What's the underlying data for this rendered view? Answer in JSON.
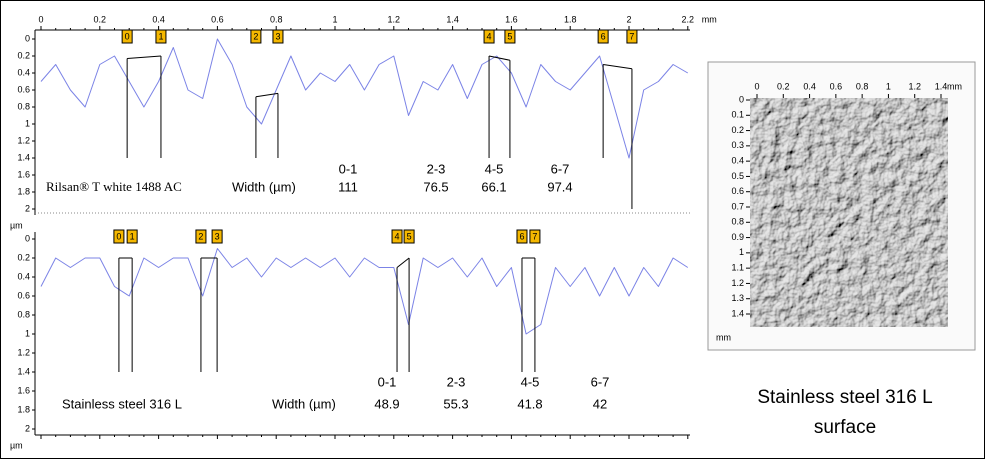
{
  "chart_data": [
    {
      "type": "line",
      "x_label": "mm",
      "y_label": "µm",
      "y_inverted": true,
      "show_x_tick_labels": true,
      "xlim": [
        0,
        2.2
      ],
      "xticks": [
        0,
        0.2,
        0.4,
        0.6,
        0.8,
        1,
        1.2,
        1.4,
        1.6,
        1.8,
        2,
        2.2
      ],
      "ylim": [
        0,
        2
      ],
      "yticks": [
        0,
        0.2,
        0.4,
        0.6,
        0.8,
        1,
        1.2,
        1.4,
        1.6,
        1.8,
        2
      ],
      "x": [
        0,
        0.05,
        0.1,
        0.15,
        0.2,
        0.25,
        0.3,
        0.35,
        0.4,
        0.45,
        0.5,
        0.55,
        0.6,
        0.65,
        0.7,
        0.75,
        0.8,
        0.85,
        0.9,
        0.95,
        1.0,
        1.05,
        1.1,
        1.15,
        1.2,
        1.25,
        1.3,
        1.35,
        1.4,
        1.45,
        1.5,
        1.55,
        1.6,
        1.65,
        1.7,
        1.75,
        1.8,
        1.85,
        1.9,
        1.95,
        2.0,
        2.05,
        2.1,
        2.15,
        2.2
      ],
      "series": [
        {
          "name": "Rilsan® T white 1488 AC",
          "color": "#7b83e6",
          "values": [
            0.5,
            0.3,
            0.6,
            0.8,
            0.3,
            0.2,
            0.5,
            0.8,
            0.5,
            0.1,
            0.6,
            0.7,
            0.0,
            0.3,
            0.8,
            1.0,
            0.6,
            0.2,
            0.6,
            0.4,
            0.5,
            0.3,
            0.6,
            0.3,
            0.2,
            0.9,
            0.5,
            0.6,
            0.3,
            0.7,
            0.3,
            0.2,
            0.4,
            0.8,
            0.3,
            0.5,
            0.6,
            0.4,
            0.2,
            0.8,
            1.4,
            0.6,
            0.5,
            0.3,
            0.4
          ]
        }
      ],
      "markers": [
        {
          "label": "0",
          "x": 0.293,
          "y": 0.23,
          "to": 1.4
        },
        {
          "label": "1",
          "x": 0.408,
          "y": 0.2,
          "to": 1.4
        },
        {
          "label": "2",
          "x": 0.731,
          "y": 0.68,
          "to": 1.4
        },
        {
          "label": "3",
          "x": 0.806,
          "y": 0.64,
          "to": 1.4
        },
        {
          "label": "4",
          "x": 1.524,
          "y": 0.2,
          "to": 1.4
        },
        {
          "label": "5",
          "x": 1.595,
          "y": 0.25,
          "to": 1.4
        },
        {
          "label": "6",
          "x": 1.912,
          "y": 0.3,
          "to": 1.4
        },
        {
          "label": "7",
          "x": 2.01,
          "y": 0.35,
          "to": 2
        }
      ],
      "width_table": {
        "label": "Width (µm)",
        "pairs": [
          "0-1",
          "2-3",
          "4-5",
          "6-7"
        ],
        "values": [
          111,
          76.5,
          66.1,
          97.4
        ]
      }
    },
    {
      "type": "line",
      "y_label": "µm",
      "y_inverted": true,
      "show_x_tick_labels": false,
      "xlim": [
        0,
        2.2
      ],
      "xticks": [
        0,
        0.2,
        0.4,
        0.6,
        0.8,
        1,
        1.2,
        1.4,
        1.6,
        1.8,
        2,
        2.2
      ],
      "ylim": [
        0,
        2
      ],
      "yticks": [
        0,
        0.2,
        0.4,
        0.6,
        0.8,
        1,
        1.2,
        1.4,
        1.6,
        1.8,
        2
      ],
      "x": [
        0,
        0.05,
        0.1,
        0.15,
        0.2,
        0.25,
        0.3,
        0.35,
        0.4,
        0.45,
        0.5,
        0.55,
        0.6,
        0.65,
        0.7,
        0.75,
        0.8,
        0.85,
        0.9,
        0.95,
        1.0,
        1.05,
        1.1,
        1.15,
        1.2,
        1.25,
        1.3,
        1.35,
        1.4,
        1.45,
        1.5,
        1.55,
        1.6,
        1.65,
        1.7,
        1.75,
        1.8,
        1.85,
        1.9,
        1.95,
        2.0,
        2.05,
        2.1,
        2.15,
        2.2
      ],
      "series": [
        {
          "name": "Stainless steel 316 L",
          "color": "#7b83e6",
          "values": [
            0.5,
            0.2,
            0.3,
            0.2,
            0.2,
            0.5,
            0.6,
            0.2,
            0.3,
            0.2,
            0.2,
            0.6,
            0.1,
            0.3,
            0.2,
            0.4,
            0.2,
            0.3,
            0.2,
            0.3,
            0.2,
            0.4,
            0.2,
            0.3,
            0.3,
            0.9,
            0.2,
            0.3,
            0.2,
            0.4,
            0.2,
            0.5,
            0.3,
            1.0,
            0.9,
            0.3,
            0.5,
            0.3,
            0.6,
            0.3,
            0.6,
            0.3,
            0.5,
            0.2,
            0.3
          ]
        }
      ],
      "markers": [
        {
          "label": "0",
          "x": 0.265,
          "y": 0.2,
          "to": 1.4
        },
        {
          "label": "1",
          "x": 0.31,
          "y": 0.2,
          "to": 1.4
        },
        {
          "label": "2",
          "x": 0.544,
          "y": 0.2,
          "to": 1.4
        },
        {
          "label": "3",
          "x": 0.599,
          "y": 0.2,
          "to": 1.4
        },
        {
          "label": "4",
          "x": 1.211,
          "y": 0.3,
          "to": 1.4
        },
        {
          "label": "5",
          "x": 1.252,
          "y": 0.2,
          "to": 1.4
        },
        {
          "label": "6",
          "x": 1.636,
          "y": 0.2,
          "to": 1.4
        },
        {
          "label": "7",
          "x": 1.68,
          "y": 0.2,
          "to": 1.4
        }
      ],
      "width_table": {
        "label": "Width (µm)",
        "pairs": [
          "0-1",
          "2-3",
          "4-5",
          "6-7"
        ],
        "values": [
          48.9,
          55.3,
          41.8,
          42
        ]
      }
    }
  ],
  "surface_image": {
    "caption": "Stainless steel 316 L surface",
    "unit": "mm",
    "xlim": [
      0,
      1.4
    ],
    "xticks": [
      0,
      0.2,
      0.4,
      0.6,
      0.8,
      1,
      1.2,
      1.4
    ],
    "ylim": [
      0,
      1.4
    ],
    "yticks": [
      0,
      0.1,
      0.2,
      0.3,
      0.4,
      0.5,
      0.6,
      0.7,
      0.8,
      0.9,
      1,
      1.1,
      1.2,
      1.3,
      1.4
    ]
  }
}
